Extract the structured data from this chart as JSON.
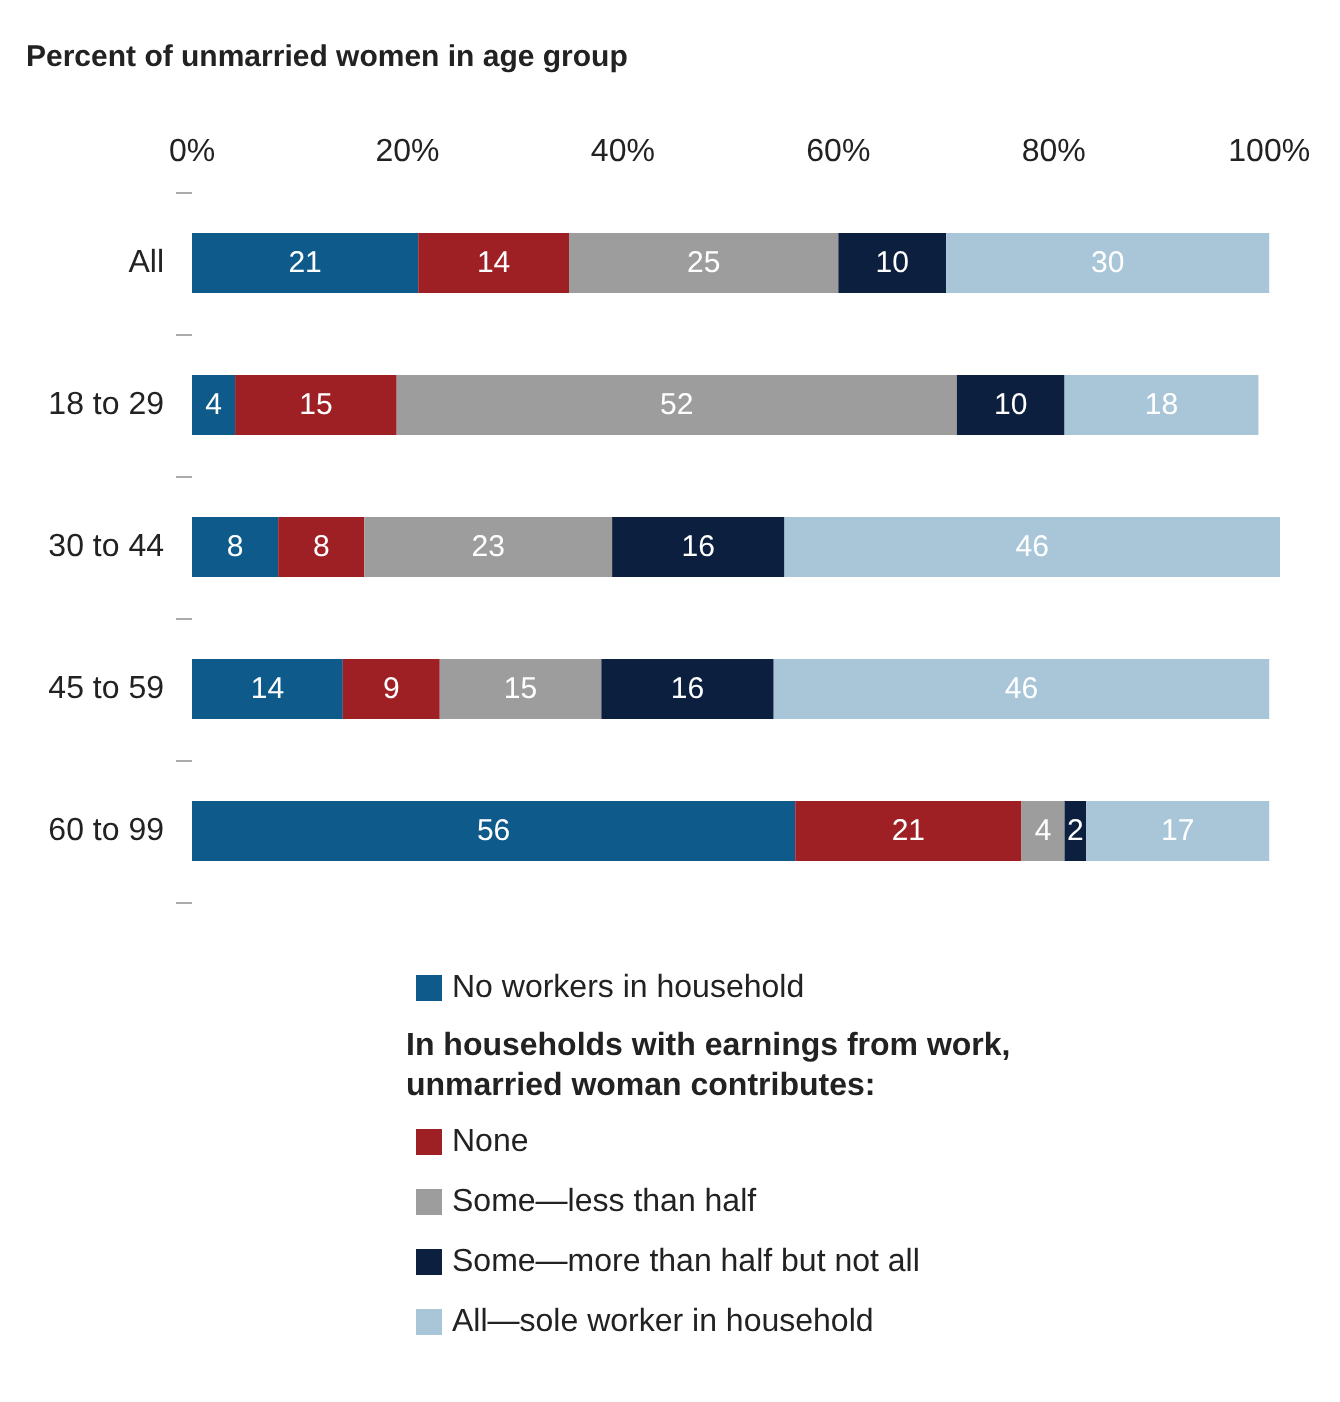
{
  "chart_data": {
    "type": "bar",
    "orientation": "horizontal",
    "stacked": true,
    "title": "Percent of unmarried women in age group",
    "categories": [
      "All",
      "18 to 29",
      "30 to 44",
      "45 to 59",
      "60 to 99"
    ],
    "series": [
      {
        "name": "No workers in household",
        "color": "#0e5a8a",
        "values": [
          21,
          4,
          8,
          14,
          56
        ]
      },
      {
        "name": "None",
        "color": "#9e1f24",
        "values": [
          14,
          15,
          8,
          9,
          21
        ]
      },
      {
        "name": "Some—less than half",
        "color": "#9d9d9d",
        "values": [
          25,
          52,
          23,
          15,
          4
        ]
      },
      {
        "name": "Some—more than half but not all",
        "color": "#0d1f3f",
        "values": [
          10,
          10,
          16,
          16,
          2
        ]
      },
      {
        "name": "All—sole worker in household",
        "color": "#a9c6d9",
        "values": [
          30,
          18,
          46,
          46,
          17
        ]
      }
    ],
    "legend_title": "In households with earnings from work,\nunmarried woman contributes:",
    "xlim": [
      0,
      101
    ],
    "xticks": [
      {
        "value": 0,
        "label": "0%"
      },
      {
        "value": 20,
        "label": "20%"
      },
      {
        "value": 40,
        "label": "40%"
      },
      {
        "value": 60,
        "label": "60%"
      },
      {
        "value": 80,
        "label": "80%"
      },
      {
        "value": 100,
        "label": "100%"
      }
    ],
    "data_labels": true,
    "grid": false,
    "legend": "bottom"
  }
}
